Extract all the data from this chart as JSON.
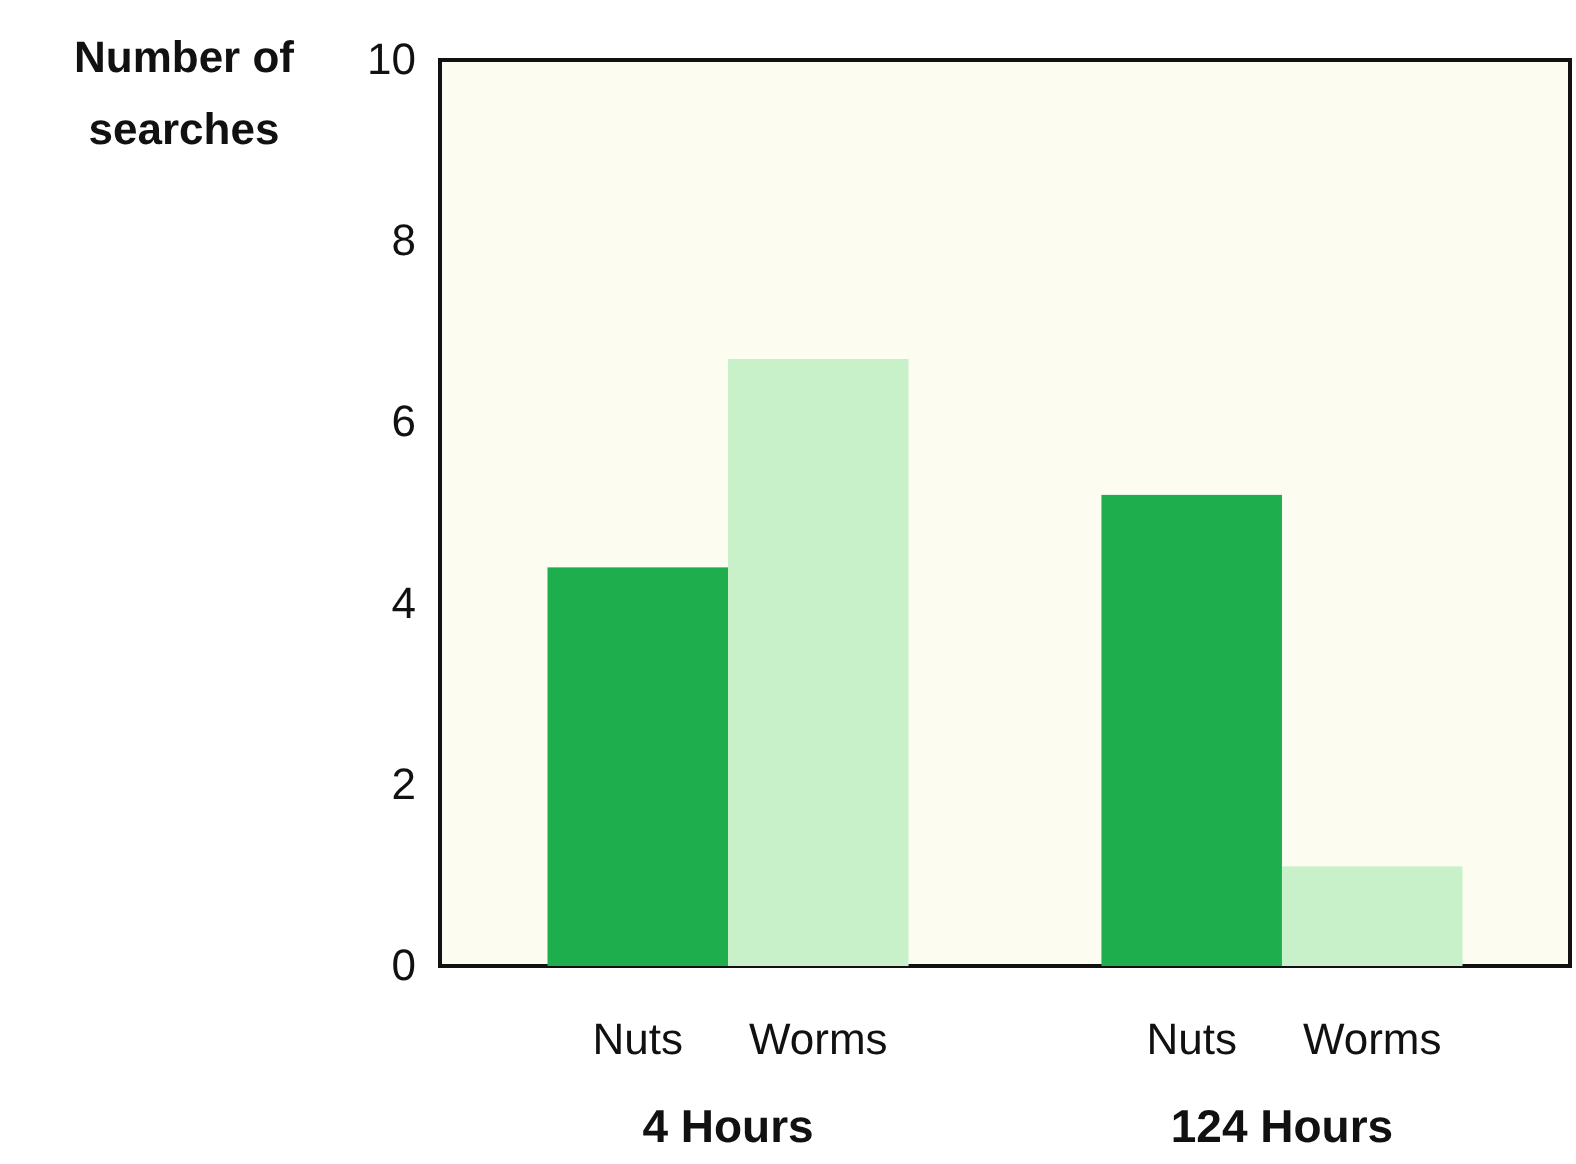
{
  "chart_data": {
    "type": "bar",
    "ylabel": "Number of searches",
    "categories": [
      "4 Hours",
      "124 Hours"
    ],
    "series": [
      {
        "name": "Nuts",
        "color": "#1fae4e",
        "values": [
          4.4,
          5.2
        ]
      },
      {
        "name": "Worms",
        "color": "#c9f1c9",
        "values": [
          6.7,
          1.1
        ]
      }
    ],
    "ylim": [
      0,
      10
    ],
    "yticks": [
      0,
      2,
      4,
      6,
      8,
      10
    ],
    "grid": false,
    "legend": false
  }
}
